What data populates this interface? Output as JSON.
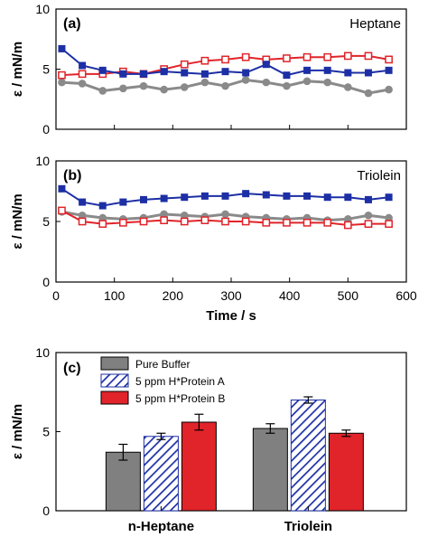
{
  "chart_data": [
    {
      "type": "line",
      "panel_label": "(a)",
      "name_label": "Heptane",
      "ylabel": "ε / mN/m",
      "xlabel": "",
      "ylim": [
        0,
        10
      ],
      "xlim": [
        0,
        600
      ],
      "yticks": [
        0,
        5,
        10
      ],
      "xticks": [
        0,
        100,
        200,
        300,
        400,
        500,
        600
      ],
      "show_xtick_labels": false,
      "series": [
        {
          "key": "pure_buffer",
          "color": "#8a8a8a",
          "marker": "circle",
          "x": [
            10,
            45,
            80,
            115,
            150,
            185,
            220,
            255,
            290,
            325,
            360,
            395,
            430,
            465,
            500,
            535,
            570
          ],
          "y": [
            3.9,
            3.8,
            3.2,
            3.4,
            3.6,
            3.3,
            3.5,
            3.9,
            3.6,
            4.1,
            3.9,
            3.6,
            4.0,
            3.9,
            3.5,
            3.0,
            3.3
          ]
        },
        {
          "key": "protein_a",
          "color": "#1d2fa5",
          "marker": "square-filled",
          "x": [
            10,
            45,
            80,
            115,
            150,
            185,
            220,
            255,
            290,
            325,
            360,
            395,
            430,
            465,
            500,
            535,
            570
          ],
          "y": [
            6.7,
            5.3,
            4.9,
            4.6,
            4.6,
            4.8,
            4.7,
            4.6,
            4.8,
            4.7,
            5.4,
            4.5,
            4.9,
            4.9,
            4.7,
            4.7,
            4.9
          ]
        },
        {
          "key": "protein_b",
          "color": "#e0242a",
          "marker": "square-open",
          "x": [
            10,
            45,
            80,
            115,
            150,
            185,
            220,
            255,
            290,
            325,
            360,
            395,
            430,
            465,
            500,
            535,
            570
          ],
          "y": [
            4.5,
            4.6,
            4.6,
            4.8,
            4.6,
            5.0,
            5.4,
            5.7,
            5.8,
            6.0,
            5.8,
            5.9,
            6.0,
            6.0,
            6.1,
            6.1,
            5.8
          ]
        }
      ]
    },
    {
      "type": "line",
      "panel_label": "(b)",
      "name_label": "Triolein",
      "ylabel": "ε / mN/m",
      "xlabel": "Time / s",
      "ylim": [
        0,
        10
      ],
      "xlim": [
        0,
        600
      ],
      "yticks": [
        0,
        5,
        10
      ],
      "xticks": [
        0,
        100,
        200,
        300,
        400,
        500,
        600
      ],
      "show_xtick_labels": true,
      "series": [
        {
          "key": "pure_buffer",
          "color": "#8a8a8a",
          "marker": "circle",
          "x": [
            10,
            45,
            80,
            115,
            150,
            185,
            220,
            255,
            290,
            325,
            360,
            395,
            430,
            465,
            500,
            535,
            570
          ],
          "y": [
            5.8,
            5.5,
            5.3,
            5.2,
            5.3,
            5.6,
            5.5,
            5.4,
            5.6,
            5.4,
            5.3,
            5.2,
            5.3,
            5.1,
            5.2,
            5.5,
            5.3
          ]
        },
        {
          "key": "protein_a",
          "color": "#1d2fa5",
          "marker": "square-filled",
          "x": [
            10,
            45,
            80,
            115,
            150,
            185,
            220,
            255,
            290,
            325,
            360,
            395,
            430,
            465,
            500,
            535,
            570
          ],
          "y": [
            7.7,
            6.6,
            6.3,
            6.6,
            6.8,
            6.9,
            7.0,
            7.1,
            7.1,
            7.3,
            7.2,
            7.1,
            7.1,
            7.0,
            7.0,
            6.8,
            7.0
          ]
        },
        {
          "key": "protein_b",
          "color": "#e0242a",
          "marker": "square-open",
          "x": [
            10,
            45,
            80,
            115,
            150,
            185,
            220,
            255,
            290,
            325,
            360,
            395,
            430,
            465,
            500,
            535,
            570
          ],
          "y": [
            5.9,
            5.0,
            4.8,
            4.9,
            5.0,
            5.1,
            5.0,
            5.1,
            5.0,
            5.0,
            4.9,
            4.9,
            4.9,
            4.9,
            4.7,
            4.8,
            4.8
          ]
        }
      ]
    },
    {
      "type": "bar",
      "panel_label": "(c)",
      "ylabel": "ε / mN/m",
      "ylim": [
        0,
        10
      ],
      "yticks": [
        0,
        5,
        10
      ],
      "categories": [
        "n-Heptane",
        "Triolein"
      ],
      "series": [
        {
          "key": "pure_buffer",
          "name": "Pure Buffer",
          "color": "#808080",
          "pattern": "solid",
          "values": [
            3.7,
            5.2
          ],
          "errors": [
            0.5,
            0.3
          ]
        },
        {
          "key": "protein_a",
          "name": "5 ppm H*Protein A",
          "color": "#1d2fa5",
          "pattern": "hatch",
          "values": [
            4.7,
            7.0
          ],
          "errors": [
            0.2,
            0.2
          ]
        },
        {
          "key": "protein_b",
          "name": "5 ppm H*Protein B",
          "color": "#e0242a",
          "pattern": "solid",
          "values": [
            5.6,
            4.9
          ],
          "errors": [
            0.5,
            0.2
          ]
        }
      ],
      "legend_position": "top-left"
    }
  ]
}
